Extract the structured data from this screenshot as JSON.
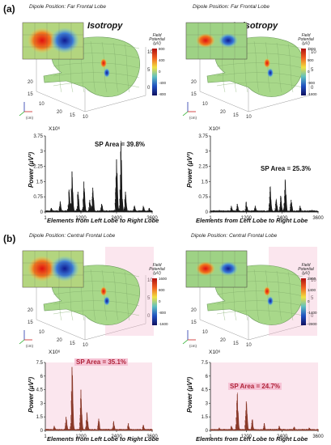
{
  "panels": [
    {
      "label": "(a)",
      "left": {
        "col_title": "Isotropy",
        "dipole": "Dipole Position: Far Frontal Lobe",
        "sp_area": "SP Area = 39.8%"
      },
      "right": {
        "col_title": "Anisotropy",
        "dipole": "Dipole Position: Far Frontal Lobe",
        "sp_area": "SP Area = 25.3%"
      },
      "cbar_left": {
        "title": "Field Potential (µV)",
        "ticks": [
          "800",
          "400",
          "0",
          "-400",
          "-800"
        ]
      },
      "cbar_right": {
        "title": "Field Potential (µV)",
        "ticks": [
          "1800",
          "900",
          "0",
          "-900",
          "-1800"
        ]
      }
    },
    {
      "label": "(b)",
      "left": {
        "dipole": "Dipole Position: Central Frontal Lobe",
        "sp_area": "SP Area = 35.1%"
      },
      "right": {
        "dipole": "Dipole Position: Central Frontal Lobe",
        "sp_area": "SP Area = 24.7%"
      },
      "cbar_left": {
        "title": "Field Potential (µV)",
        "ticks": [
          "1600",
          "800",
          "0",
          "-800",
          "-1600"
        ]
      },
      "cbar_right": {
        "title": "Field Potential (µV)",
        "ticks": [
          "2800",
          "1400",
          "0",
          "-1400",
          "-2800"
        ]
      }
    }
  ],
  "head_axes": {
    "z_ticks": [
      "10",
      "5",
      "0"
    ],
    "y_ticks": [
      "20",
      "15",
      "10"
    ],
    "x_ticks": [
      "20",
      "15",
      "10"
    ],
    "unit": "(cm)"
  },
  "chart_axes": {
    "ylabel": "Power (µV²)",
    "xlabel": "Elements from Left Lobe to Right Lobe",
    "multiplier": "X10⁶",
    "xticks": [
      "1",
      "1200",
      "2400",
      "3600"
    ],
    "yticks": [
      "0",
      "0.75",
      "1.5",
      "2.25",
      "3",
      "3.75"
    ],
    "yticks_b": [
      "0",
      "1.5",
      "3",
      "4.5",
      "6",
      "7.5"
    ]
  },
  "colors": {
    "spectrum_a": "#1a1a1a",
    "spectrum_b": "#8a3a2a",
    "highlight_b": "#f4b7cf",
    "brain": "#a8d88a"
  },
  "chart_data": [
    {
      "type": "line",
      "title": "",
      "xlabel": "Elements from Left Lobe to Right Lobe",
      "ylabel": "Power (µV²)",
      "xlim": [
        1,
        3600
      ],
      "ylim": [
        0,
        3.75
      ],
      "series": [
        {
          "values": [
            0.2,
            0.5,
            1.1,
            2.0,
            1.0,
            1.5,
            0.6,
            1.2,
            0.4,
            2.6,
            3.4,
            1.0,
            0.3,
            0.3,
            0.2
          ]
        }
      ],
      "x": [
        200,
        500,
        800,
        900,
        1100,
        1300,
        1500,
        1600,
        1900,
        2400,
        2550,
        2700,
        3000,
        3300,
        3500
      ]
    },
    {
      "type": "line",
      "title": "",
      "xlabel": "Elements from Left Lobe to Right Lobe",
      "ylabel": "Power (µV²)",
      "xlim": [
        1,
        3600
      ],
      "ylim": [
        0,
        3.75
      ],
      "series": [
        {
          "values": [
            0.1,
            0.3,
            0.4,
            0.5,
            0.3,
            1.2,
            0.6,
            0.8,
            1.6,
            0.6,
            0.3,
            0.1
          ]
        }
      ],
      "x": [
        300,
        700,
        900,
        1200,
        1500,
        2000,
        2200,
        2350,
        2500,
        2700,
        3000,
        3400
      ]
    },
    {
      "type": "line",
      "title": "",
      "xlabel": "Elements from Left Lobe to Right Lobe",
      "ylabel": "Power (µV²)",
      "xlim": [
        1,
        3600
      ],
      "ylim": [
        0,
        7.5
      ],
      "series": [
        {
          "values": [
            0.5,
            1.5,
            7.0,
            4.5,
            2.0,
            1.3,
            1.0,
            0.8,
            0.6
          ]
        }
      ],
      "x": [
        300,
        700,
        900,
        1200,
        1400,
        1800,
        2300,
        2800,
        3300
      ]
    },
    {
      "type": "line",
      "title": "",
      "xlabel": "Elements from Left Lobe to Right Lobe",
      "ylabel": "Power (µV²)",
      "xlim": [
        1,
        3600
      ],
      "ylim": [
        0,
        7.5
      ],
      "series": [
        {
          "values": [
            0.3,
            0.5,
            4.0,
            3.2,
            1.2,
            0.8,
            0.5,
            0.4,
            0.3
          ]
        }
      ],
      "x": [
        300,
        700,
        900,
        1200,
        1400,
        1800,
        2300,
        2800,
        3300
      ]
    }
  ]
}
